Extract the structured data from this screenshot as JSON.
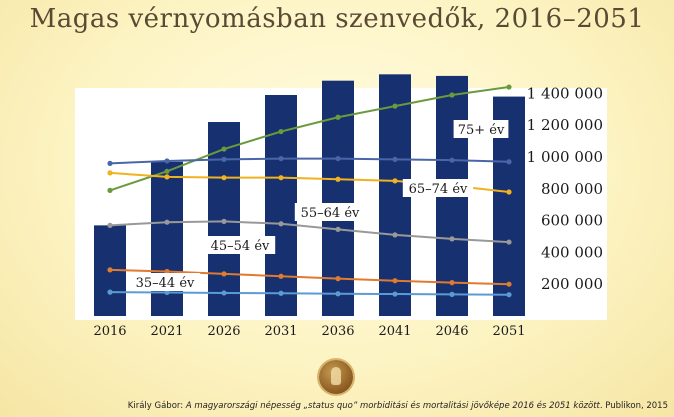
{
  "title": "Magas vérnyomásban szenvedők, 2016–2051",
  "footer": {
    "author": "Király Gábor: ",
    "work": "A magyarországi népesség „status quo” morbiditási és mortalitási jövőképe 2016 és 2051 között",
    "tail": ". Publikon, 2015"
  },
  "seal_icon": "university-seal-icon",
  "chart_data": {
    "type": "bar",
    "categories": [
      "2016",
      "2021",
      "2026",
      "2031",
      "2036",
      "2041",
      "2046",
      "2051"
    ],
    "values": [
      570000,
      970000,
      1220000,
      1390000,
      1480000,
      1520000,
      1510000,
      1380000
    ],
    "bar_color": "#17306f",
    "ylim": [
      0,
      1600000
    ],
    "yticks": [
      {
        "value": 200000,
        "label": "200 000"
      },
      {
        "value": 400000,
        "label": "400 000"
      },
      {
        "value": 600000,
        "label": "600 000"
      },
      {
        "value": 800000,
        "label": "800 000"
      },
      {
        "value": 1000000,
        "label": "1 000 000"
      },
      {
        "value": 1200000,
        "label": "1 200 000"
      },
      {
        "value": 1400000,
        "label": "1 400 000"
      }
    ],
    "y_axis_side": "right",
    "grid": false,
    "series": [
      {
        "name": "75+ év",
        "color": "#6a9a3c",
        "values": [
          790000,
          910000,
          1050000,
          1160000,
          1250000,
          1320000,
          1390000,
          1440000
        ]
      },
      {
        "name": "65–74 év",
        "color": "#4a66a8",
        "values": [
          960000,
          975000,
          985000,
          990000,
          990000,
          985000,
          980000,
          970000
        ]
      },
      {
        "name": "55–64 év",
        "color": "#f0b21e",
        "values": [
          900000,
          875000,
          870000,
          870000,
          860000,
          850000,
          820000,
          780000
        ]
      },
      {
        "name": "45–54 év",
        "color": "#999999",
        "values": [
          570000,
          590000,
          595000,
          580000,
          545000,
          510000,
          485000,
          465000
        ]
      },
      {
        "name": "35–44 év",
        "color": "#e07a30",
        "values": [
          290000,
          280000,
          265000,
          250000,
          235000,
          222000,
          210000,
          200000
        ]
      },
      {
        "name": "",
        "color": "#5b9bd5",
        "values": [
          150000,
          148000,
          145000,
          143000,
          140000,
          138000,
          136000,
          134000
        ]
      }
    ]
  }
}
